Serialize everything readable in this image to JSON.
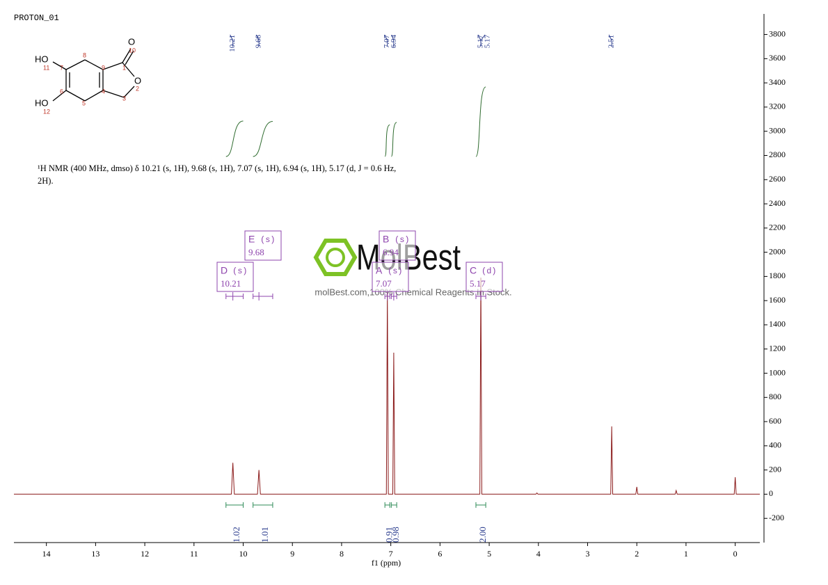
{
  "sample_name": "PROTON_01",
  "structure": {
    "atoms": [
      "HO",
      "11",
      "7",
      "8",
      "9",
      "1",
      "O",
      "10",
      "O",
      "2",
      "3",
      "4",
      "5",
      "6",
      "HO",
      "12"
    ]
  },
  "description_line1": "¹H NMR (400 MHz, dmso) δ 10.21 (s, 1H), 9.68 (s, 1H), 7.07 (s, 1H), 6.94 (s, 1H), 5.17 (d, J = 0.6 Hz,",
  "description_line2": "2H).",
  "watermark": {
    "brand": "MolBest",
    "tagline": "molBest.com,100% Chemical Reagents In Stock."
  },
  "chart_data": {
    "type": "line",
    "x_label": "f1 (ppm)",
    "xlim": [
      14.66,
      -0.5
    ],
    "xticks": [
      14,
      13,
      12,
      11,
      10,
      9,
      8,
      7,
      6,
      5,
      4,
      3,
      2,
      1,
      0
    ],
    "ylim": [
      -400,
      3970
    ],
    "yticks": [
      -200,
      0,
      200,
      400,
      600,
      800,
      1000,
      1200,
      1400,
      1600,
      1800,
      2000,
      2200,
      2400,
      2600,
      2800,
      3000,
      3200,
      3400,
      3600,
      3800
    ],
    "color": "#8b1a1a",
    "x": [
      14.66,
      10.24,
      10.21,
      10.18,
      9.71,
      9.68,
      9.65,
      7.09,
      7.07,
      7.05,
      6.96,
      6.94,
      6.92,
      5.19,
      5.17,
      5.15,
      4.05,
      4.03,
      4.01,
      2.53,
      2.51,
      2.49,
      2.02,
      2.0,
      1.98,
      1.22,
      1.2,
      1.18,
      0.02,
      0,
      -0.02,
      -0.5
    ],
    "values": [
      0,
      0,
      260,
      0,
      0,
      200,
      0,
      0,
      1670,
      0,
      0,
      1170,
      0,
      0,
      1790,
      0,
      0,
      10,
      0,
      0,
      560,
      0,
      0,
      60,
      0,
      0,
      30,
      0,
      0,
      140,
      0,
      0
    ],
    "peak_picks": [
      10.21,
      9.68,
      7.07,
      6.94,
      5.17,
      5.17,
      2.51
    ],
    "integrals": [
      {
        "from": 10.35,
        "to": 10.0,
        "value": 1.02
      },
      {
        "from": 9.8,
        "to": 9.4,
        "value": 1.01
      },
      {
        "from": 7.12,
        "to": 7.02,
        "value": 0.91
      },
      {
        "from": 6.99,
        "to": 6.88,
        "value": 0.98
      },
      {
        "from": 5.27,
        "to": 5.07,
        "value": 2.0,
        "value_label": "2.00"
      }
    ],
    "multiplets": [
      {
        "label": "D",
        "multiplicity": "(s)",
        "shift": 10.21
      },
      {
        "label": "E",
        "multiplicity": "(s)",
        "shift": 9.68
      },
      {
        "label": "A",
        "multiplicity": "(s)",
        "shift": 7.07
      },
      {
        "label": "B",
        "multiplicity": "(s)",
        "shift": 6.94
      },
      {
        "label": "C",
        "multiplicity": "(d)",
        "shift": 5.17
      }
    ]
  }
}
